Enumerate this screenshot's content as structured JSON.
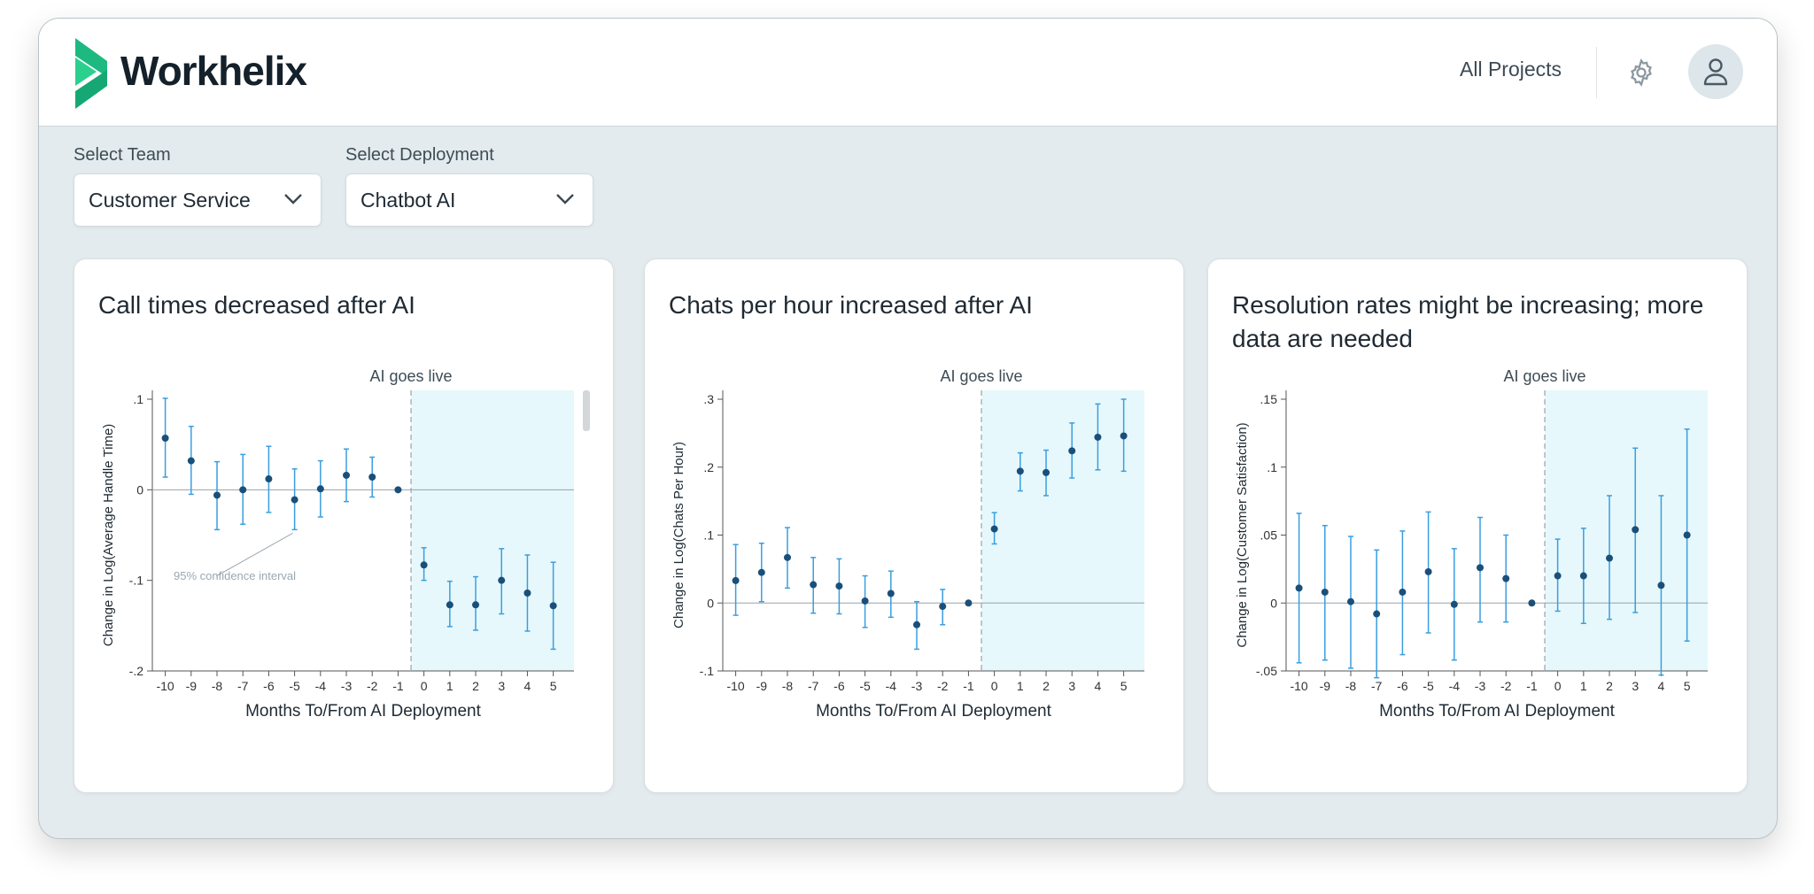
{
  "app": {
    "brand": "Workhelix",
    "nav_link": "All Projects"
  },
  "colors": {
    "accent": "#1eb980",
    "point": "#1a4f7a",
    "errorbar": "#3a9ee0",
    "shade": "#e6f8fb"
  },
  "filters": {
    "team": {
      "label": "Select Team",
      "value": "Customer Service"
    },
    "deployment": {
      "label": "Select Deployment",
      "value": "Chatbot AI"
    }
  },
  "cards": [
    {
      "title": "Call times decreased after AI"
    },
    {
      "title": "Chats per hour increased after AI"
    },
    {
      "title": "Resolution rates might be increasing; more data are needed"
    }
  ],
  "chart_data": [
    {
      "type": "scatter",
      "title": "Call times decreased after AI",
      "xlabel": "Months To/From AI Deployment",
      "ylabel": "Change in Log(Average Handle Time)",
      "x": [
        -10,
        -9,
        -8,
        -7,
        -6,
        -5,
        -4,
        -3,
        -2,
        -1,
        0,
        1,
        2,
        3,
        4,
        5
      ],
      "y": [
        0.057,
        0.032,
        -0.006,
        0.0,
        0.012,
        -0.011,
        0.001,
        0.016,
        0.014,
        0.0,
        -0.083,
        -0.127,
        -0.127,
        -0.1,
        -0.114,
        -0.128
      ],
      "lower": [
        0.014,
        -0.005,
        -0.044,
        -0.038,
        -0.025,
        -0.044,
        -0.03,
        -0.013,
        -0.008,
        0.0,
        -0.1,
        -0.151,
        -0.155,
        -0.137,
        -0.156,
        -0.176
      ],
      "upper": [
        0.101,
        0.07,
        0.031,
        0.039,
        0.048,
        0.023,
        0.032,
        0.045,
        0.036,
        0.0,
        -0.064,
        -0.101,
        -0.096,
        -0.065,
        -0.072,
        -0.08
      ],
      "yticks": [
        ".1",
        "0",
        "-.1",
        "-.2"
      ],
      "ytick_values": [
        0.1,
        0,
        -0.1,
        -0.2
      ],
      "ylim": [
        -0.2,
        0.1
      ],
      "xlim": [
        -10.5,
        5.8
      ],
      "event_label": "AI goes live",
      "annotation": "95% confidence interval"
    },
    {
      "type": "scatter",
      "title": "Chats per hour increased after AI",
      "xlabel": "Months To/From AI Deployment",
      "ylabel": "Change in Log(Chats Per Hour)",
      "x": [
        -10,
        -9,
        -8,
        -7,
        -6,
        -5,
        -4,
        -3,
        -2,
        -1,
        0,
        1,
        2,
        3,
        4,
        5
      ],
      "y": [
        0.033,
        0.045,
        0.067,
        0.027,
        0.025,
        0.003,
        0.014,
        -0.032,
        -0.005,
        0.0,
        0.109,
        0.194,
        0.192,
        0.224,
        0.244,
        0.246
      ],
      "lower": [
        -0.018,
        0.002,
        0.022,
        -0.015,
        -0.016,
        -0.036,
        -0.021,
        -0.068,
        -0.032,
        0.0,
        0.087,
        0.165,
        0.158,
        0.184,
        0.196,
        0.194
      ],
      "upper": [
        0.086,
        0.088,
        0.111,
        0.067,
        0.065,
        0.04,
        0.047,
        0.002,
        0.02,
        0.0,
        0.133,
        0.221,
        0.225,
        0.265,
        0.293,
        0.3
      ],
      "yticks": [
        ".3",
        ".2",
        ".1",
        "0",
        "-.1"
      ],
      "ytick_values": [
        0.3,
        0.2,
        0.1,
        0,
        -0.1
      ],
      "ylim": [
        -0.1,
        0.3
      ],
      "xlim": [
        -10.5,
        5.8
      ],
      "event_label": "AI goes live"
    },
    {
      "type": "scatter",
      "title": "Resolution rates might be increasing; more data are needed",
      "xlabel": "Months To/From AI Deployment",
      "ylabel": "Change in Log(Customer Satisfaction)",
      "x": [
        -10,
        -9,
        -8,
        -7,
        -6,
        -5,
        -4,
        -3,
        -2,
        -1,
        0,
        1,
        2,
        3,
        4,
        5
      ],
      "y": [
        0.011,
        0.008,
        0.001,
        -0.008,
        0.008,
        0.023,
        -0.001,
        0.026,
        0.018,
        0.0,
        0.02,
        0.02,
        0.033,
        0.054,
        0.013,
        0.05
      ],
      "lower": [
        -0.044,
        -0.042,
        -0.048,
        -0.055,
        -0.038,
        -0.022,
        -0.042,
        -0.014,
        -0.014,
        0.0,
        -0.006,
        -0.015,
        -0.012,
        -0.007,
        -0.053,
        -0.028
      ],
      "upper": [
        0.066,
        0.057,
        0.049,
        0.039,
        0.053,
        0.067,
        0.04,
        0.063,
        0.05,
        0.0,
        0.047,
        0.055,
        0.079,
        0.114,
        0.079,
        0.128
      ],
      "yticks": [
        ".15",
        ".1",
        ".05",
        "0",
        "-.05"
      ],
      "ytick_values": [
        0.15,
        0.1,
        0.05,
        0,
        -0.05
      ],
      "ylim": [
        -0.05,
        0.15
      ],
      "xlim": [
        -10.5,
        5.8
      ],
      "event_label": "AI goes live"
    }
  ]
}
